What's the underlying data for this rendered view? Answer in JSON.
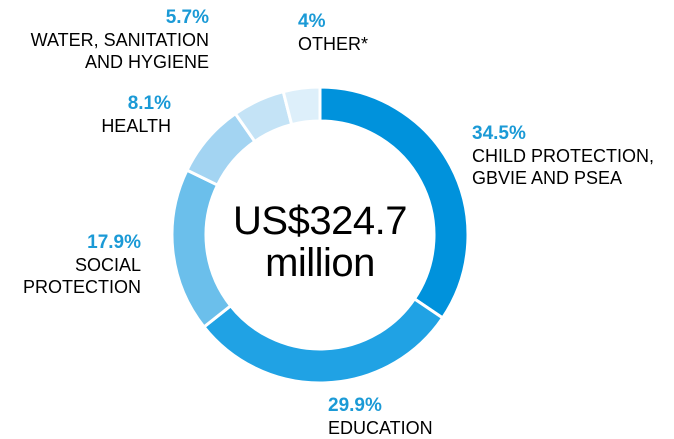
{
  "chart_data": {
    "type": "pie",
    "donut": true,
    "center_label": [
      "US$324.7",
      "million"
    ],
    "slices": [
      {
        "percent_label": "34.5%",
        "label": [
          "CHILD PROTECTION,",
          "GBVIE AND PSEA"
        ],
        "value": 34.5,
        "color": "#0092dc"
      },
      {
        "percent_label": "29.9%",
        "label": [
          "EDUCATION"
        ],
        "value": 29.9,
        "color": "#20a2e4"
      },
      {
        "percent_label": "17.9%",
        "label": [
          "SOCIAL",
          "PROTECTION"
        ],
        "value": 17.9,
        "color": "#6bbfeb"
      },
      {
        "percent_label": "8.1%",
        "label": [
          "HEALTH"
        ],
        "value": 8.1,
        "color": "#a3d4f2"
      },
      {
        "percent_label": "5.7%",
        "label": [
          "WATER, SANITATION",
          "AND HYGIENE"
        ],
        "value": 5.7,
        "color": "#c4e3f6"
      },
      {
        "percent_label": "4%",
        "label": [
          "OTHER*"
        ],
        "value": 4,
        "color": "#ddeffa"
      }
    ],
    "percent_color": "#1b9ad6"
  }
}
